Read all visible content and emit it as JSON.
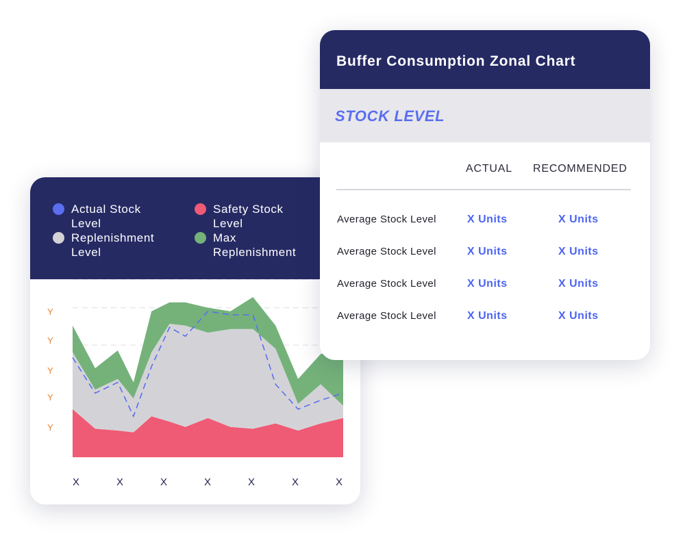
{
  "chart_card": {
    "legend": [
      {
        "label": "Actual Stock Level",
        "color": "#5b6ef0"
      },
      {
        "label": "Safety Stock Level",
        "color": "#ef5a74"
      },
      {
        "label": "Replenishment Level",
        "color": "#d3d3d7"
      },
      {
        "label": "Max Replenishment",
        "color": "#74b27a"
      }
    ]
  },
  "chart_data": {
    "type": "area",
    "title": "",
    "xlabel": "",
    "ylabel": "",
    "x_tick_labels": [
      "X",
      "X",
      "X",
      "X",
      "X",
      "X",
      "X"
    ],
    "y_tick_labels": [
      "Y",
      "Y",
      "Y",
      "Y",
      "Y"
    ],
    "ylim": [
      0,
      10
    ],
    "grid": true,
    "x": [
      0,
      0.5,
      1,
      1.35,
      1.75,
      2.15,
      2.5,
      3,
      3.5,
      4,
      4.5,
      5,
      5.5,
      6
    ],
    "series": [
      {
        "name": "Safety Stock Level",
        "color": "#ef5a74",
        "style": "stacked-area",
        "values": [
          2.7,
          1.6,
          1.5,
          1.4,
          2.3,
          2.0,
          1.7,
          2.2,
          1.7,
          1.6,
          1.9,
          1.5,
          1.9,
          2.2
        ]
      },
      {
        "name": "Replenishment Level",
        "color": "#d3d3d7",
        "style": "stacked-area",
        "values": [
          3.2,
          2.2,
          2.9,
          1.9,
          3.6,
          5.5,
          5.7,
          4.8,
          5.5,
          5.6,
          4.2,
          1.5,
          2.2,
          0.7
        ]
      },
      {
        "name": "Max Replenishment",
        "color": "#74b27a",
        "style": "stacked-area",
        "values": [
          1.5,
          1.2,
          1.6,
          0.9,
          2.3,
          1.2,
          1.3,
          1.4,
          1.0,
          1.8,
          1.3,
          1.4,
          1.7,
          3.1
        ]
      },
      {
        "name": "Actual Stock Level",
        "color": "#5b6ef0",
        "style": "dashed-line",
        "values": [
          5.6,
          3.6,
          4.2,
          2.3,
          5.1,
          7.3,
          6.8,
          8.2,
          8.0,
          8.0,
          4.1,
          2.7,
          3.2,
          3.6
        ]
      }
    ]
  },
  "table_card": {
    "title": "Buffer Consumption Zonal Chart",
    "section": "STOCK LEVEL",
    "columns": {
      "actual": "ACTUAL",
      "recommended": "RECOMMENDED"
    },
    "rows": [
      {
        "label": "Average Stock Level",
        "actual": "X Units",
        "recommended": "X Units"
      },
      {
        "label": "Average Stock Level",
        "actual": "X Units",
        "recommended": "X Units"
      },
      {
        "label": "Average Stock Level",
        "actual": "X Units",
        "recommended": "X Units"
      },
      {
        "label": "Average Stock Level",
        "actual": "X Units",
        "recommended": "X Units"
      }
    ]
  }
}
